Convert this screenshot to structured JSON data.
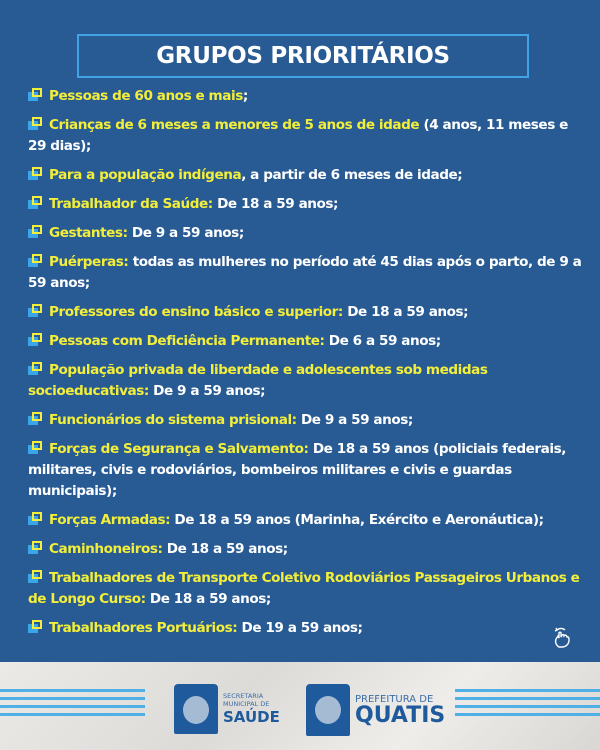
{
  "title": "GRUPOS PRIORITÁRIOS",
  "items": [
    {
      "highlight": "Pessoas de 60 anos e mais",
      "text": ";"
    },
    {
      "highlight": "Crianças de 6 meses a menores de 5 anos de idade",
      "text": " (4 anos, 11 meses e 29 dias);"
    },
    {
      "highlight": "Para a população indígena",
      "text": ", a partir de 6 meses de idade;"
    },
    {
      "highlight": "Trabalhador da Saúde:",
      "text": " De 18 a 59 anos;"
    },
    {
      "highlight": "Gestantes:",
      "text": " De 9 a 59 anos;"
    },
    {
      "highlight": "Puérperas:",
      "text": " todas as mulheres no período até 45 dias após o parto, de 9 a 59 anos;"
    },
    {
      "highlight": "Professores do ensino básico e superior:",
      "text": " De 18 a 59 anos;"
    },
    {
      "highlight": "Pessoas com Deficiência Permanente:",
      "text": " De 6 a 59 anos;"
    },
    {
      "highlight": "População privada de liberdade e adolescentes sob medidas socioeducativas:",
      "text": " De 9 a 59 anos;"
    },
    {
      "highlight": "Funcionários do sistema prisional:",
      "text": " De 9 a 59 anos;"
    },
    {
      "highlight": "Forças de Segurança e Salvamento:",
      "text": " De 18 a 59 anos (policiais federais, militares, civis e rodoviários, bombeiros militares e civis e guardas municipais);"
    },
    {
      "highlight": "Forças Armadas:",
      "text": " De 18 a 59 anos (Marinha, Exército e Aeronáutica);"
    },
    {
      "highlight": "Caminhoneiros:",
      "text": " De 18 a 59 anos;"
    },
    {
      "highlight": "Trabalhadores de Transporte Coletivo Rodoviários Passageiros Urbanos e de Longo Curso:",
      "text": " De 18 a 59 anos;"
    },
    {
      "highlight": "Trabalhadores Portuários:",
      "text": " De 19 a 59 anos;"
    }
  ],
  "footer": {
    "saude_logo": {
      "line1": "SECRETARIA",
      "line2": "MUNICIPAL DE",
      "line3": "SAÚDE"
    },
    "quatis_logo": {
      "line1": "PREFEITURA DE",
      "line2": "QUATIS"
    }
  },
  "colors": {
    "background": "#285b94",
    "highlight": "#f2ee3a",
    "accent": "#3fa3e6"
  },
  "icons": {
    "bullet": "bullet-squares-icon",
    "swipe": "swipe-hand-icon"
  }
}
